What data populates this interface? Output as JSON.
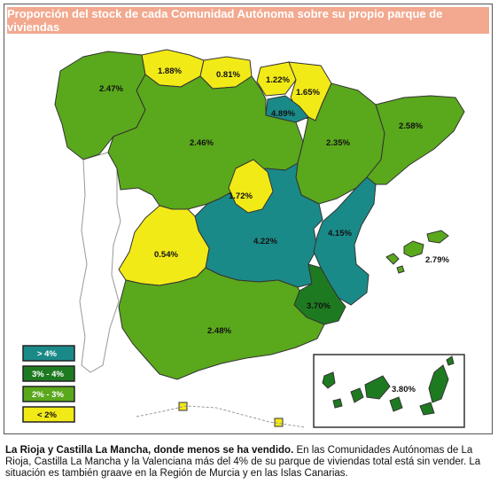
{
  "title": "Proporción del stock de cada Comunidad Autónoma sobre su propio parque de viviendas",
  "colors": {
    "gt4": "#1a8a88",
    "3to4": "#1e7a21",
    "2to3": "#5aa81c",
    "lt2": "#f2ea17",
    "title_bg": "#f2a98f"
  },
  "chart_data": {
    "type": "map",
    "regions": [
      {
        "name": "Galicia",
        "value": "2.47%",
        "category": "2to3"
      },
      {
        "name": "Asturias",
        "value": "1.88%",
        "category": "lt2"
      },
      {
        "name": "Cantabria",
        "value": "0.81%",
        "category": "lt2"
      },
      {
        "name": "País Vasco",
        "value": "1.22%",
        "category": "lt2"
      },
      {
        "name": "Navarra",
        "value": "1.65%",
        "category": "lt2"
      },
      {
        "name": "La Rioja",
        "value": "4.89%",
        "category": "gt4"
      },
      {
        "name": "Aragón",
        "value": "2.35%",
        "category": "2to3"
      },
      {
        "name": "Cataluña",
        "value": "2.58%",
        "category": "2to3"
      },
      {
        "name": "Castilla y León",
        "value": "2.46%",
        "category": "2to3"
      },
      {
        "name": "Madrid",
        "value": "1.72%",
        "category": "lt2"
      },
      {
        "name": "Castilla La Mancha",
        "value": "4.22%",
        "category": "gt4"
      },
      {
        "name": "Comunidad Valenciana",
        "value": "4.15%",
        "category": "gt4"
      },
      {
        "name": "Extremadura",
        "value": "0.54%",
        "category": "lt2"
      },
      {
        "name": "Región de Murcia",
        "value": "3.70%",
        "category": "3to4"
      },
      {
        "name": "Andalucía",
        "value": "2.48%",
        "category": "2to3"
      },
      {
        "name": "Islas Baleares",
        "value": "2.79%",
        "category": "2to3"
      },
      {
        "name": "Islas Canarias",
        "value": "3.80%",
        "category": "3to4"
      }
    ],
    "legend": [
      {
        "label": "> 4%",
        "category": "gt4"
      },
      {
        "label": "3% - 4%",
        "category": "3to4"
      },
      {
        "label": "2% - 3%",
        "category": "2to3"
      },
      {
        "label": "< 2%",
        "category": "lt2"
      }
    ]
  },
  "caption": {
    "bold": "La Rioja y Castilla La Mancha, donde menos se ha vendido.",
    "text": " En las Comunidades Autónomas de La Rioja, Castilla La Mancha y la Valenciana más del 4% de su parque de viviendas total está sin vender. La situación es también graave en la Región de Murcia y en las Islas Canarias."
  }
}
